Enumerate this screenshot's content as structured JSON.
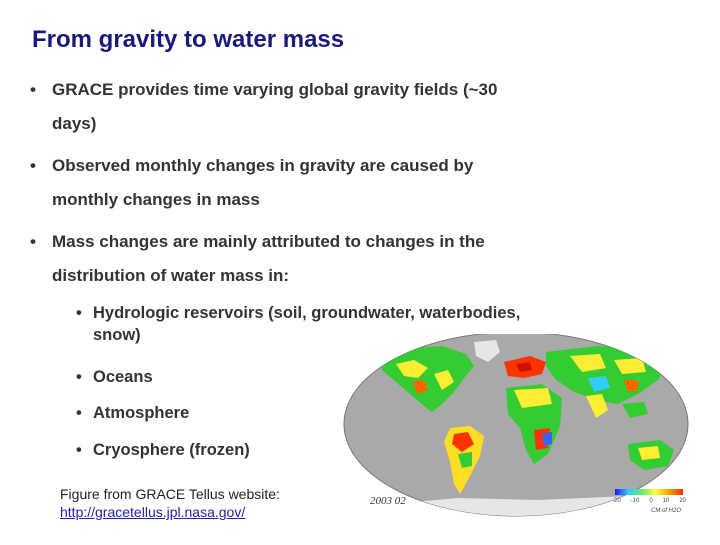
{
  "slide": {
    "title": "From gravity to water mass",
    "bullet_glyph": "•",
    "bullets": [
      {
        "line1": "GRACE provides time varying global gravity fields (~30",
        "line2": "days)"
      },
      {
        "line1": "Observed monthly changes in gravity are caused by",
        "line2": "monthly changes in mass"
      },
      {
        "line1": "Mass changes are mainly attributed to changes in the",
        "line2": "distribution of water mass in:"
      }
    ],
    "sub_bullets": [
      {
        "line1": "Hydrologic reservoirs (soil, groundwater, waterbodies,",
        "line2": "snow)"
      },
      {
        "line1": "Oceans"
      },
      {
        "line1": "Atmosphere"
      },
      {
        "line1": "Cryosphere (frozen)"
      }
    ],
    "caption": {
      "text": "Figure from GRACE Tellus website:",
      "link": "http://gracetellus.jpl.nasa.gov/"
    }
  },
  "map": {
    "date_label": "2003 02",
    "colorbar_ticks": [
      "-20",
      "-10",
      "0",
      "10",
      "20"
    ],
    "colorbar_unit": "CM of H2O",
    "colors": {
      "ocean": "#a9a9a9",
      "land_green": "#33cc33",
      "land_yellow": "#ffee33",
      "land_red": "#ff3300",
      "land_blue": "#3366ff",
      "land_cyan": "#33ccff"
    }
  }
}
